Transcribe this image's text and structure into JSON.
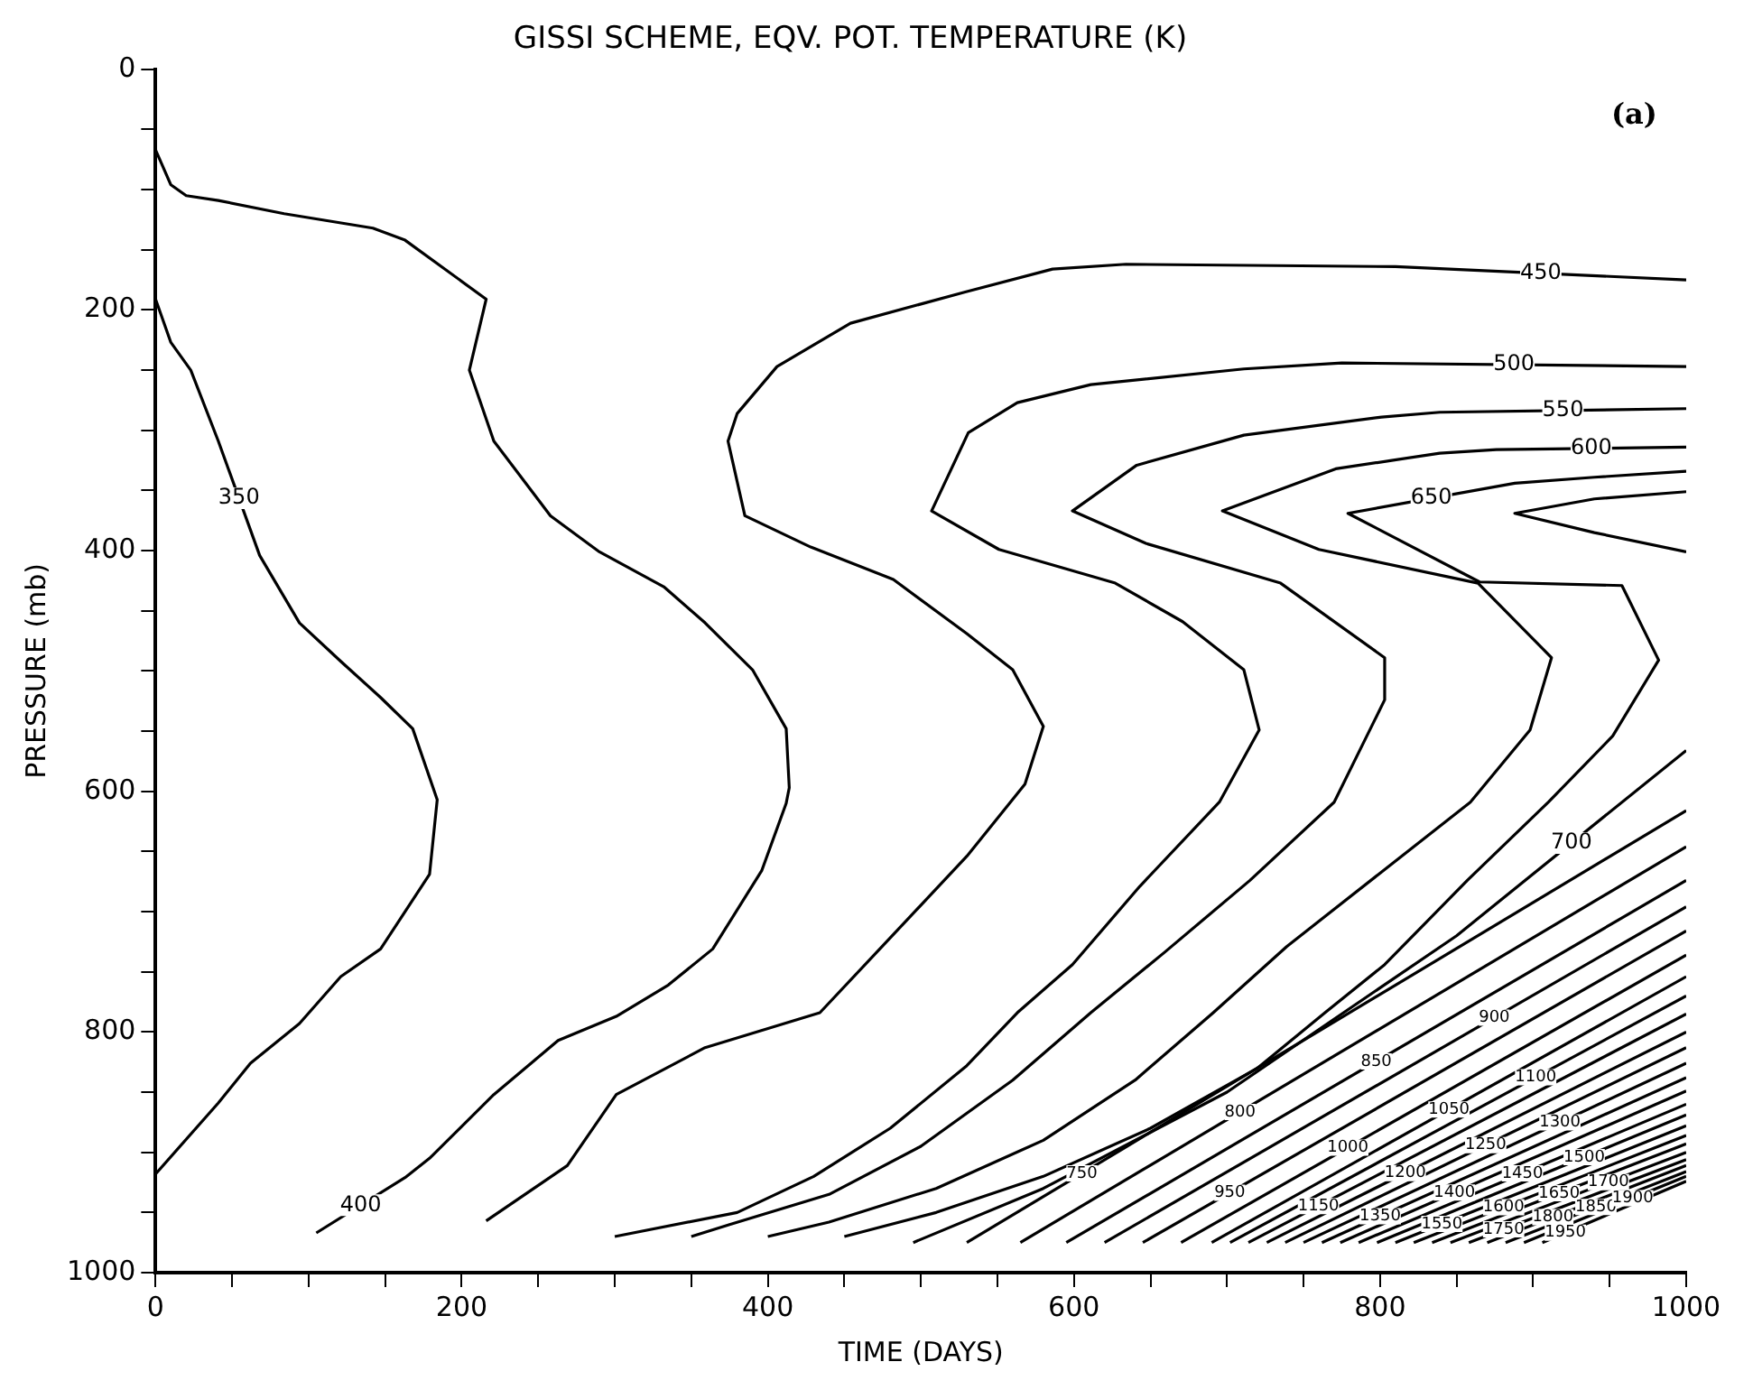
{
  "chart_data": {
    "type": "line",
    "title": "GISSI SCHEME, EQV. POT. TEMPERATURE (K)",
    "xlabel": "TIME (DAYS)",
    "ylabel": "PRESSURE (mb)",
    "annotations": [
      "(a)"
    ],
    "xlim": [
      0,
      1000
    ],
    "ylim": [
      1000,
      0
    ],
    "xticks": [
      0,
      {
        "value": 50,
        "label": null
      },
      {
        "value": 100,
        "label": null
      },
      {
        "value": 150,
        "label": null
      },
      200,
      {
        "value": 250,
        "label": null
      },
      {
        "value": 300,
        "label": null
      },
      {
        "value": 350,
        "label": null
      },
      400,
      {
        "value": 450,
        "label": null
      },
      {
        "value": 500,
        "label": null
      },
      {
        "value": 550,
        "label": null
      },
      600,
      {
        "value": 650,
        "label": null
      },
      {
        "value": 700,
        "label": null
      },
      {
        "value": 750,
        "label": null
      },
      800,
      {
        "value": 850,
        "label": null
      },
      {
        "value": 900,
        "label": null
      },
      {
        "value": 950,
        "label": null
      },
      1000
    ],
    "yticks": [
      0,
      {
        "value": 50,
        "label": null
      },
      {
        "value": 100,
        "label": null
      },
      {
        "value": 150,
        "label": null
      },
      200,
      {
        "value": 250,
        "label": null
      },
      {
        "value": 300,
        "label": null
      },
      {
        "value": 350,
        "label": null
      },
      400,
      {
        "value": 450,
        "label": null
      },
      {
        "value": 500,
        "label": null
      },
      {
        "value": 550,
        "label": null
      },
      600,
      {
        "value": 650,
        "label": null
      },
      {
        "value": 700,
        "label": null
      },
      {
        "value": 750,
        "label": null
      },
      800,
      {
        "value": 850,
        "label": null
      },
      {
        "value": 900,
        "label": null
      },
      {
        "value": 950,
        "label": null
      },
      1000
    ],
    "grid": false,
    "legend": false,
    "marker": "none",
    "line_style": "solid",
    "series": [
      {
        "name": "350",
        "color": "#000000",
        "x": [
          0,
          10,
          23,
          41,
          68,
          94,
          121,
          147,
          168,
          184,
          179,
          147,
          121,
          94,
          62,
          41,
          0
        ],
        "values": [
          191,
          227,
          250,
          309,
          404,
          460,
          492,
          522,
          548,
          607,
          669,
          731,
          754,
          793,
          826,
          859,
          918
        ]
      },
      {
        "name": "400",
        "color": "#000000",
        "x": [
          0,
          10,
          20,
          41,
          84,
          142,
          163,
          216,
          205,
          221,
          258,
          290,
          332,
          359,
          390,
          412,
          414,
          412,
          396,
          364,
          335,
          301,
          263,
          221,
          179,
          163,
          105
        ],
        "values": [
          67,
          96,
          105,
          109,
          120,
          132,
          142,
          191,
          250,
          309,
          371,
          401,
          430,
          460,
          499,
          548,
          597,
          610,
          666,
          731,
          761,
          787,
          807,
          852,
          905,
          921,
          967
        ]
      },
      {
        "name": "450",
        "color": "#000000",
        "x": [
          1000,
          810,
          634,
          586,
          529,
          454,
          406,
          380,
          374,
          385,
          428,
          482,
          530,
          560,
          580,
          568,
          530,
          482,
          434,
          359,
          301,
          269,
          216
        ],
        "values": [
          175,
          164,
          162,
          166,
          185,
          211,
          247,
          286,
          309,
          371,
          397,
          424,
          469,
          499,
          546,
          594,
          654,
          719,
          784,
          813,
          852,
          911,
          957
        ]
      },
      {
        "name": "500",
        "color": "#000000",
        "x": [
          1000,
          775,
          711,
          611,
          563,
          531,
          507,
          551,
          627,
          671,
          711,
          721,
          695,
          643,
          599,
          563,
          530,
          480,
          430,
          380,
          300
        ],
        "values": [
          247,
          244,
          249,
          262,
          277,
          302,
          367,
          399,
          427,
          459,
          499,
          549,
          609,
          679,
          744,
          784,
          828,
          880,
          920,
          950,
          970
        ]
      },
      {
        "name": "550",
        "color": "#000000",
        "x": [
          1000,
          839,
          801,
          711,
          641,
          599,
          647,
          735,
          803,
          803,
          770,
          715,
          659,
          611,
          560,
          500,
          440,
          375,
          350
        ],
        "values": [
          282,
          285,
          289,
          304,
          329,
          367,
          394,
          427,
          489,
          524,
          609,
          674,
          734,
          784,
          840,
          895,
          935,
          960,
          970
        ]
      },
      {
        "name": "600",
        "color": "#000000",
        "x": [
          1000,
          876,
          839,
          771,
          697,
          760,
          864,
          912,
          898,
          859,
          799,
          739,
          691,
          640,
          580,
          510,
          440,
          400
        ],
        "values": [
          314,
          316,
          319,
          332,
          367,
          399,
          427,
          489,
          549,
          609,
          669,
          729,
          784,
          840,
          890,
          930,
          958,
          970
        ]
      },
      {
        "name": "650",
        "color": "#000000",
        "x": [
          1000,
          940,
          888,
          779,
          865,
          958,
          982,
          952,
          910,
          857,
          803,
          764,
          720,
          650,
          580,
          510,
          450
        ],
        "values": [
          334,
          339,
          344,
          369,
          426,
          429,
          491,
          554,
          609,
          674,
          744,
          784,
          830,
          880,
          920,
          950,
          970
        ]
      },
      {
        "name": "700",
        "color": "#000000",
        "x": [
          1000,
          940,
          888,
          940,
          1000,
          null,
          495,
          580,
          700,
          850,
          1000
        ],
        "values": [
          351,
          357,
          369,
          385,
          401,
          null,
          975,
          930,
          850,
          720,
          566
        ]
      },
      {
        "name": "750",
        "color": "#000000",
        "x": [
          530,
          1000
        ],
        "values": [
          975,
          616
        ]
      },
      {
        "name": "800",
        "color": "#000000",
        "x": [
          565,
          1000
        ],
        "values": [
          975,
          646
        ]
      },
      {
        "name": "850",
        "color": "#000000",
        "x": [
          595,
          1000
        ],
        "values": [
          975,
          674
        ]
      },
      {
        "name": "900",
        "color": "#000000",
        "x": [
          620,
          1000
        ],
        "values": [
          975,
          696
        ]
      },
      {
        "name": "950",
        "color": "#000000",
        "x": [
          645,
          1000
        ],
        "values": [
          975,
          716
        ]
      },
      {
        "name": "1000",
        "color": "#000000",
        "x": [
          670,
          1000
        ],
        "values": [
          975,
          736
        ]
      },
      {
        "name": "1050",
        "color": "#000000",
        "x": [
          690,
          1000
        ],
        "values": [
          975,
          754
        ]
      },
      {
        "name": "1100",
        "color": "#000000",
        "x": [
          702,
          1000
        ],
        "values": [
          975,
          770
        ]
      },
      {
        "name": "1150",
        "color": "#000000",
        "x": [
          714,
          1000
        ],
        "values": [
          975,
          785
        ]
      },
      {
        "name": "1200",
        "color": "#000000",
        "x": [
          726,
          1000
        ],
        "values": [
          975,
          800
        ]
      },
      {
        "name": "1250",
        "color": "#000000",
        "x": [
          738,
          1000
        ],
        "values": [
          975,
          813
        ]
      },
      {
        "name": "1300",
        "color": "#000000",
        "x": [
          750,
          1000
        ],
        "values": [
          975,
          826
        ]
      },
      {
        "name": "1350",
        "color": "#000000",
        "x": [
          762,
          1000
        ],
        "values": [
          975,
          838
        ]
      },
      {
        "name": "1400",
        "color": "#000000",
        "x": [
          774,
          1000
        ],
        "values": [
          975,
          849
        ]
      },
      {
        "name": "1450",
        "color": "#000000",
        "x": [
          786,
          1000
        ],
        "values": [
          975,
          860
        ]
      },
      {
        "name": "1500",
        "color": "#000000",
        "x": [
          798,
          1000
        ],
        "values": [
          975,
          869
        ]
      },
      {
        "name": "1550",
        "color": "#000000",
        "x": [
          810,
          1000
        ],
        "values": [
          975,
          878
        ]
      },
      {
        "name": "1600",
        "color": "#000000",
        "x": [
          822,
          1000
        ],
        "values": [
          975,
          886
        ]
      },
      {
        "name": "1650",
        "color": "#000000",
        "x": [
          834,
          1000
        ],
        "values": [
          975,
          893
        ]
      },
      {
        "name": "1700",
        "color": "#000000",
        "x": [
          846,
          1000
        ],
        "values": [
          975,
          900
        ]
      },
      {
        "name": "1750",
        "color": "#000000",
        "x": [
          858,
          1000
        ],
        "values": [
          975,
          906
        ]
      },
      {
        "name": "1800",
        "color": "#000000",
        "x": [
          870,
          1000
        ],
        "values": [
          975,
          911
        ]
      },
      {
        "name": "1850",
        "color": "#000000",
        "x": [
          882,
          1000
        ],
        "values": [
          975,
          916
        ]
      },
      {
        "name": "1900",
        "color": "#000000",
        "x": [
          894,
          1000
        ],
        "values": [
          975,
          920
        ]
      },
      {
        "name": "1950",
        "color": "#000000",
        "x": [
          906,
          1000
        ],
        "values": [
          975,
          924
        ]
      }
    ]
  }
}
